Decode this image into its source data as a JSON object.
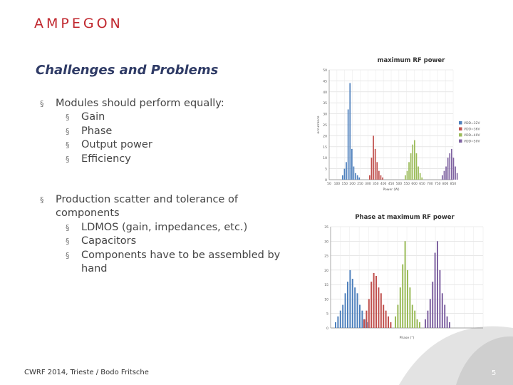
{
  "header": {
    "logo": "AMPEGON"
  },
  "slide": {
    "title": "Challenges and Problems",
    "bullets": [
      {
        "text": "Modules should perform equally:",
        "sub": [
          "Gain",
          "Phase",
          "Output power",
          "Efficiency"
        ]
      },
      {
        "text": "Production scatter and tolerance of components",
        "sub": [
          "LDMOS (gain, impedances, etc.)",
          "Capacitors",
          "Components have to be assembled by hand"
        ]
      }
    ]
  },
  "footer": {
    "text": "CWRF 2014, Trieste / Bodo Fritsche",
    "page": "5"
  },
  "colors": {
    "brand": "#c0262d",
    "title": "#2f3b66",
    "blue": "#4f81bd",
    "red": "#c0504d",
    "green": "#9bbb59",
    "purple": "#8064a2"
  },
  "chart_data": [
    {
      "type": "bar",
      "title": "maximum RF power",
      "xlabel": "Power (W)",
      "ylabel": "occurrence",
      "ylim": [
        0,
        50
      ],
      "yticks": [
        "0",
        "5",
        "10",
        "15",
        "20",
        "25",
        "30",
        "35",
        "40",
        "45",
        "50"
      ],
      "xticks": [
        "50",
        "100",
        "150",
        "200",
        "250",
        "300",
        "350",
        "400",
        "450",
        "500",
        "550",
        "600",
        "650",
        "700",
        "750",
        "800",
        "850"
      ],
      "legend_position": "right",
      "series": [
        {
          "name": "VDD=32V",
          "color": "#4f81bd",
          "values": [
            2,
            5,
            8,
            32,
            44,
            14,
            6,
            3,
            2,
            1
          ]
        },
        {
          "name": "VDD=36V",
          "color": "#c0504d",
          "values": [
            2,
            10,
            20,
            14,
            8,
            4,
            2,
            1
          ]
        },
        {
          "name": "VDD=40V",
          "color": "#9bbb59",
          "values": [
            2,
            4,
            8,
            12,
            16,
            18,
            12,
            6,
            3,
            1
          ]
        },
        {
          "name": "VDD=50V",
          "color": "#8064a2",
          "values": [
            2,
            4,
            6,
            10,
            12,
            14,
            10,
            6,
            3
          ]
        }
      ]
    },
    {
      "type": "bar",
      "title": "Phase at maximum RF power",
      "xlabel": "Phase (°)",
      "ylabel": "occurrence",
      "ylim": [
        0,
        35
      ],
      "yticks": [
        "0",
        "5",
        "10",
        "15",
        "20",
        "25",
        "30",
        "35"
      ],
      "legend_position": "right",
      "series": [
        {
          "name": "VDD=32V",
          "color": "#4f81bd",
          "values": [
            2,
            4,
            6,
            8,
            12,
            16,
            20,
            17,
            14,
            12,
            8,
            6,
            3,
            2
          ]
        },
        {
          "name": "VDD=36V",
          "color": "#c0504d",
          "values": [
            3,
            6,
            10,
            16,
            19,
            18,
            14,
            12,
            8,
            6,
            4,
            2
          ]
        },
        {
          "name": "VDD=40V",
          "color": "#9bbb59",
          "values": [
            4,
            8,
            14,
            22,
            30,
            20,
            14,
            8,
            6,
            3,
            2
          ]
        },
        {
          "name": "VDD=50V",
          "color": "#8064a2",
          "values": [
            3,
            6,
            10,
            16,
            26,
            30,
            20,
            12,
            8,
            4,
            2
          ]
        }
      ]
    }
  ]
}
